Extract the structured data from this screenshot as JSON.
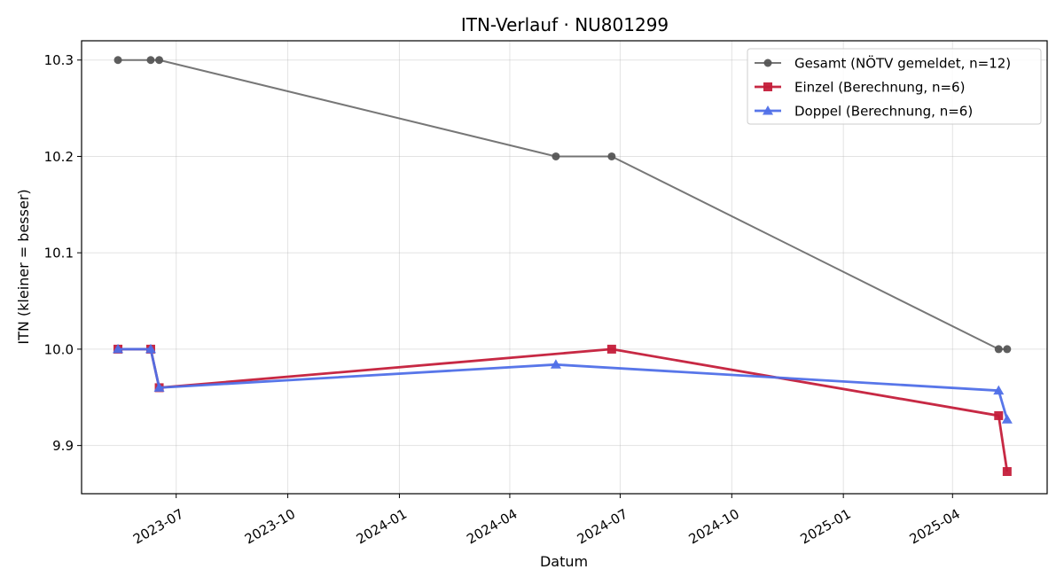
{
  "chart_data": {
    "type": "line",
    "title": "ITN-Verlauf · NU801299",
    "xlabel": "Datum",
    "ylabel": "ITN  (kleiner = besser)",
    "xlim": [
      "2023-04-14",
      "2025-06-18"
    ],
    "ylim": [
      9.85,
      10.32
    ],
    "x_ticks": [
      "2023-07-01",
      "2023-10-01",
      "2024-01-01",
      "2024-04-01",
      "2024-07-01",
      "2024-10-01",
      "2025-01-01",
      "2025-04-01"
    ],
    "x_tick_labels": [
      "2023-07",
      "2023-10",
      "2024-01",
      "2024-04",
      "2024-07",
      "2024-10",
      "2025-01",
      "2025-04"
    ],
    "y_ticks": [
      9.9,
      10.0,
      10.1,
      10.2,
      10.3
    ],
    "y_tick_labels": [
      "9.9",
      "10.0",
      "10.1",
      "10.2",
      "10.3"
    ],
    "grid": true,
    "legend_position": "top-right",
    "series": [
      {
        "name": "Gesamt (NÖTV gemeldet, n=12)",
        "color": "#555555",
        "marker": "circle",
        "x": [
          "2023-05-14",
          "2023-06-10",
          "2023-06-17",
          "2024-05-09",
          "2024-06-24",
          "2025-05-09",
          "2025-05-16"
        ],
        "y": [
          10.3,
          10.3,
          10.3,
          10.2,
          10.2,
          10.0,
          10.0
        ]
      },
      {
        "name": "Einzel (Berechnung, n=6)",
        "color": "#c41e3a",
        "marker": "square",
        "x": [
          "2023-05-14",
          "2023-06-10",
          "2023-06-17",
          "2024-06-24",
          "2025-05-09",
          "2025-05-16"
        ],
        "y": [
          10.0,
          10.0,
          9.96,
          10.0,
          9.931,
          9.873
        ]
      },
      {
        "name": "Doppel (Berechnung, n=6)",
        "color": "#4f6fe8",
        "marker": "triangle",
        "x": [
          "2023-05-14",
          "2023-06-10",
          "2023-06-17",
          "2024-05-09",
          "2025-05-09",
          "2025-05-16"
        ],
        "y": [
          10.0,
          10.0,
          9.96,
          9.984,
          9.957,
          9.927
        ]
      }
    ]
  }
}
